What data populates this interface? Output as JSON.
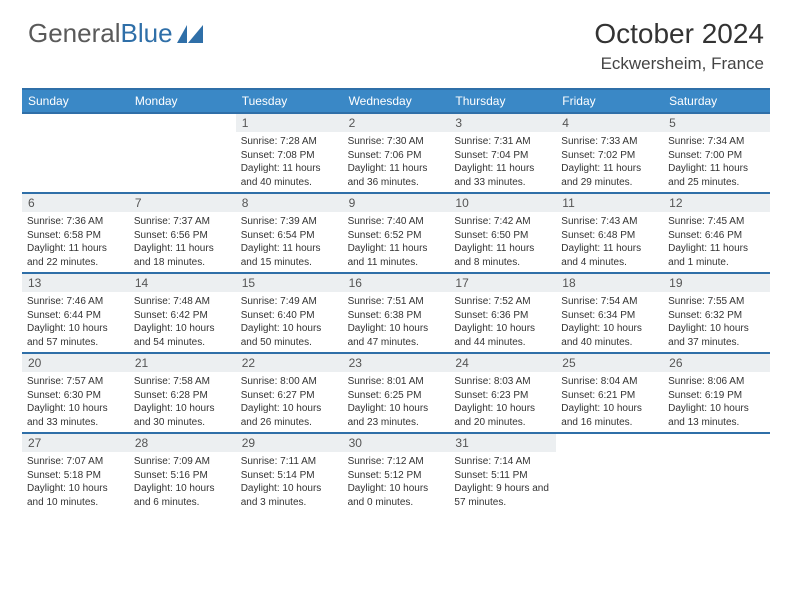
{
  "logo": {
    "text1": "General",
    "text2": "Blue"
  },
  "title": "October 2024",
  "location": "Eckwersheim, France",
  "colors": {
    "header_bg": "#3a88c6",
    "border": "#2f6fa8",
    "daynum_bg": "#eceff1",
    "logo_gray": "#5a5a5a",
    "logo_blue": "#2f6fa8"
  },
  "dow": [
    "Sunday",
    "Monday",
    "Tuesday",
    "Wednesday",
    "Thursday",
    "Friday",
    "Saturday"
  ],
  "weeks": [
    [
      {
        "n": "",
        "sr": "",
        "ss": "",
        "dl": ""
      },
      {
        "n": "",
        "sr": "",
        "ss": "",
        "dl": ""
      },
      {
        "n": "1",
        "sr": "Sunrise: 7:28 AM",
        "ss": "Sunset: 7:08 PM",
        "dl": "Daylight: 11 hours and 40 minutes."
      },
      {
        "n": "2",
        "sr": "Sunrise: 7:30 AM",
        "ss": "Sunset: 7:06 PM",
        "dl": "Daylight: 11 hours and 36 minutes."
      },
      {
        "n": "3",
        "sr": "Sunrise: 7:31 AM",
        "ss": "Sunset: 7:04 PM",
        "dl": "Daylight: 11 hours and 33 minutes."
      },
      {
        "n": "4",
        "sr": "Sunrise: 7:33 AM",
        "ss": "Sunset: 7:02 PM",
        "dl": "Daylight: 11 hours and 29 minutes."
      },
      {
        "n": "5",
        "sr": "Sunrise: 7:34 AM",
        "ss": "Sunset: 7:00 PM",
        "dl": "Daylight: 11 hours and 25 minutes."
      }
    ],
    [
      {
        "n": "6",
        "sr": "Sunrise: 7:36 AM",
        "ss": "Sunset: 6:58 PM",
        "dl": "Daylight: 11 hours and 22 minutes."
      },
      {
        "n": "7",
        "sr": "Sunrise: 7:37 AM",
        "ss": "Sunset: 6:56 PM",
        "dl": "Daylight: 11 hours and 18 minutes."
      },
      {
        "n": "8",
        "sr": "Sunrise: 7:39 AM",
        "ss": "Sunset: 6:54 PM",
        "dl": "Daylight: 11 hours and 15 minutes."
      },
      {
        "n": "9",
        "sr": "Sunrise: 7:40 AM",
        "ss": "Sunset: 6:52 PM",
        "dl": "Daylight: 11 hours and 11 minutes."
      },
      {
        "n": "10",
        "sr": "Sunrise: 7:42 AM",
        "ss": "Sunset: 6:50 PM",
        "dl": "Daylight: 11 hours and 8 minutes."
      },
      {
        "n": "11",
        "sr": "Sunrise: 7:43 AM",
        "ss": "Sunset: 6:48 PM",
        "dl": "Daylight: 11 hours and 4 minutes."
      },
      {
        "n": "12",
        "sr": "Sunrise: 7:45 AM",
        "ss": "Sunset: 6:46 PM",
        "dl": "Daylight: 11 hours and 1 minute."
      }
    ],
    [
      {
        "n": "13",
        "sr": "Sunrise: 7:46 AM",
        "ss": "Sunset: 6:44 PM",
        "dl": "Daylight: 10 hours and 57 minutes."
      },
      {
        "n": "14",
        "sr": "Sunrise: 7:48 AM",
        "ss": "Sunset: 6:42 PM",
        "dl": "Daylight: 10 hours and 54 minutes."
      },
      {
        "n": "15",
        "sr": "Sunrise: 7:49 AM",
        "ss": "Sunset: 6:40 PM",
        "dl": "Daylight: 10 hours and 50 minutes."
      },
      {
        "n": "16",
        "sr": "Sunrise: 7:51 AM",
        "ss": "Sunset: 6:38 PM",
        "dl": "Daylight: 10 hours and 47 minutes."
      },
      {
        "n": "17",
        "sr": "Sunrise: 7:52 AM",
        "ss": "Sunset: 6:36 PM",
        "dl": "Daylight: 10 hours and 44 minutes."
      },
      {
        "n": "18",
        "sr": "Sunrise: 7:54 AM",
        "ss": "Sunset: 6:34 PM",
        "dl": "Daylight: 10 hours and 40 minutes."
      },
      {
        "n": "19",
        "sr": "Sunrise: 7:55 AM",
        "ss": "Sunset: 6:32 PM",
        "dl": "Daylight: 10 hours and 37 minutes."
      }
    ],
    [
      {
        "n": "20",
        "sr": "Sunrise: 7:57 AM",
        "ss": "Sunset: 6:30 PM",
        "dl": "Daylight: 10 hours and 33 minutes."
      },
      {
        "n": "21",
        "sr": "Sunrise: 7:58 AM",
        "ss": "Sunset: 6:28 PM",
        "dl": "Daylight: 10 hours and 30 minutes."
      },
      {
        "n": "22",
        "sr": "Sunrise: 8:00 AM",
        "ss": "Sunset: 6:27 PM",
        "dl": "Daylight: 10 hours and 26 minutes."
      },
      {
        "n": "23",
        "sr": "Sunrise: 8:01 AM",
        "ss": "Sunset: 6:25 PM",
        "dl": "Daylight: 10 hours and 23 minutes."
      },
      {
        "n": "24",
        "sr": "Sunrise: 8:03 AM",
        "ss": "Sunset: 6:23 PM",
        "dl": "Daylight: 10 hours and 20 minutes."
      },
      {
        "n": "25",
        "sr": "Sunrise: 8:04 AM",
        "ss": "Sunset: 6:21 PM",
        "dl": "Daylight: 10 hours and 16 minutes."
      },
      {
        "n": "26",
        "sr": "Sunrise: 8:06 AM",
        "ss": "Sunset: 6:19 PM",
        "dl": "Daylight: 10 hours and 13 minutes."
      }
    ],
    [
      {
        "n": "27",
        "sr": "Sunrise: 7:07 AM",
        "ss": "Sunset: 5:18 PM",
        "dl": "Daylight: 10 hours and 10 minutes."
      },
      {
        "n": "28",
        "sr": "Sunrise: 7:09 AM",
        "ss": "Sunset: 5:16 PM",
        "dl": "Daylight: 10 hours and 6 minutes."
      },
      {
        "n": "29",
        "sr": "Sunrise: 7:11 AM",
        "ss": "Sunset: 5:14 PM",
        "dl": "Daylight: 10 hours and 3 minutes."
      },
      {
        "n": "30",
        "sr": "Sunrise: 7:12 AM",
        "ss": "Sunset: 5:12 PM",
        "dl": "Daylight: 10 hours and 0 minutes."
      },
      {
        "n": "31",
        "sr": "Sunrise: 7:14 AM",
        "ss": "Sunset: 5:11 PM",
        "dl": "Daylight: 9 hours and 57 minutes."
      },
      {
        "n": "",
        "sr": "",
        "ss": "",
        "dl": ""
      },
      {
        "n": "",
        "sr": "",
        "ss": "",
        "dl": ""
      }
    ]
  ]
}
